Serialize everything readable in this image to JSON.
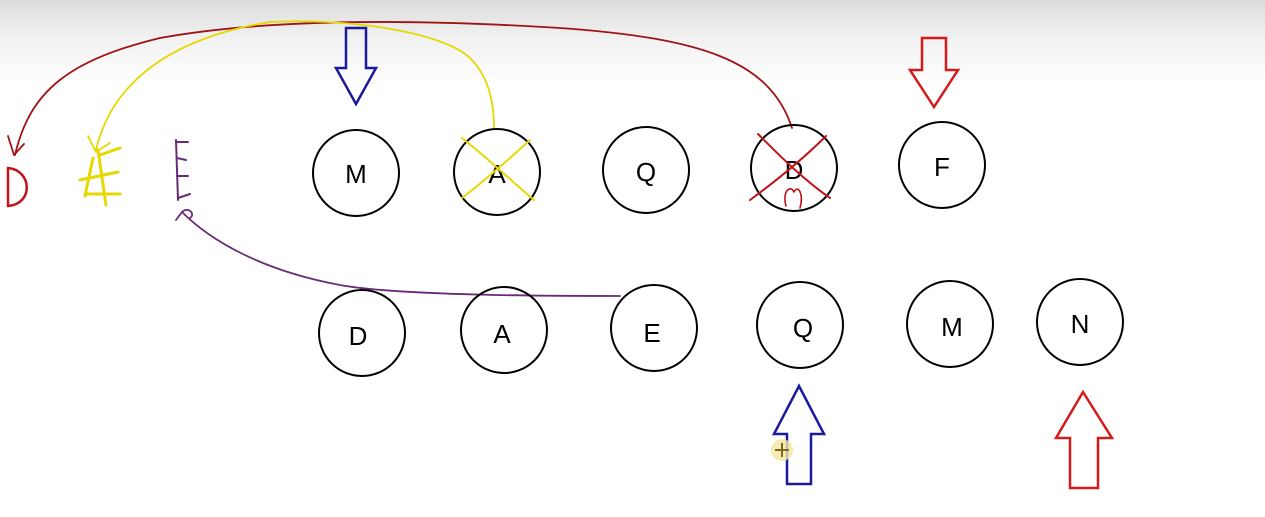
{
  "top_row": {
    "nodes": [
      {
        "label": "M",
        "crossed": false
      },
      {
        "label": "A",
        "crossed": true,
        "cross_color": "#e6d800"
      },
      {
        "label": "Q",
        "crossed": false
      },
      {
        "label": "D",
        "crossed": true,
        "cross_color": "#c0141c"
      },
      {
        "label": "F",
        "crossed": false
      }
    ]
  },
  "bottom_row": {
    "nodes": [
      {
        "label": "D"
      },
      {
        "label": "A"
      },
      {
        "label": "E"
      },
      {
        "label": "Q"
      },
      {
        "label": "M"
      },
      {
        "label": "N"
      }
    ]
  },
  "colors": {
    "blue_pointer": "#1a1a9c",
    "red_pointer": "#d41a1a",
    "red_curve": "#a01418",
    "yellow_curve": "#e6d800",
    "purple_curve": "#6a2a78",
    "cursor_highlight": "#f3e6a0"
  }
}
